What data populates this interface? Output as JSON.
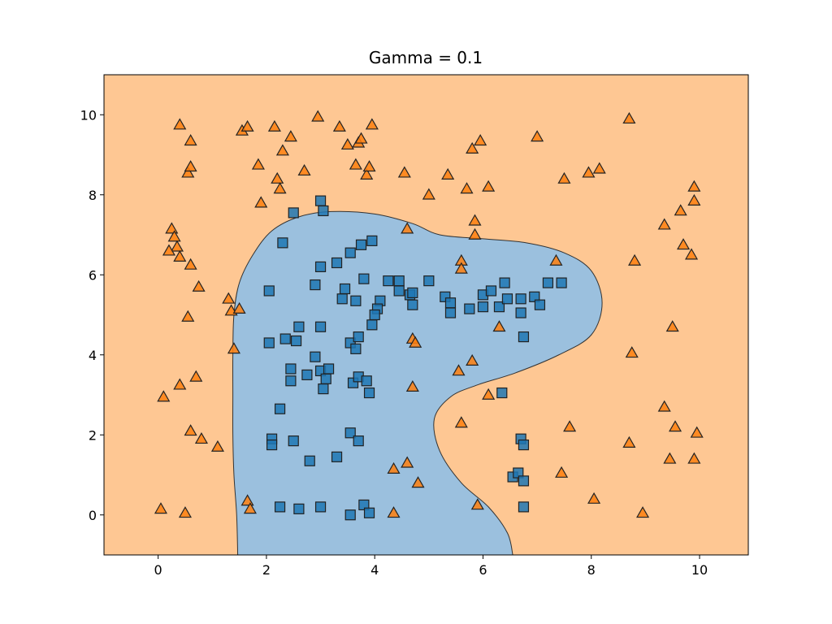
{
  "chart_data": {
    "type": "scatter",
    "title": "Gamma = 0.1",
    "xlabel": "",
    "ylabel": "",
    "xlim": [
      -1,
      10.9
    ],
    "ylim": [
      -1,
      11
    ],
    "xticks": [
      0,
      2,
      4,
      6,
      8,
      10
    ],
    "yticks": [
      0,
      2,
      4,
      6,
      8,
      10
    ],
    "grid": false,
    "colors": {
      "class0_fill": "#1f77b4",
      "class1_fill": "#ff7f0e",
      "region0": "#9bc0de",
      "region1": "#fec793",
      "marker_edge": "#222222"
    },
    "decision_boundary": [
      [
        1.47,
        -1
      ],
      [
        1.45,
        0
      ],
      [
        1.4,
        1
      ],
      [
        1.38,
        2
      ],
      [
        1.38,
        3
      ],
      [
        1.38,
        4
      ],
      [
        1.4,
        5
      ],
      [
        1.5,
        5.8
      ],
      [
        1.75,
        6.5
      ],
      [
        2.1,
        7.1
      ],
      [
        2.6,
        7.45
      ],
      [
        3.2,
        7.58
      ],
      [
        4.0,
        7.52
      ],
      [
        4.7,
        7.28
      ],
      [
        5.2,
        7.0
      ],
      [
        6.0,
        6.9
      ],
      [
        6.8,
        6.8
      ],
      [
        7.5,
        6.55
      ],
      [
        8.0,
        6.1
      ],
      [
        8.2,
        5.3
      ],
      [
        8.0,
        4.5
      ],
      [
        7.4,
        4.0
      ],
      [
        6.6,
        3.55
      ],
      [
        5.9,
        3.25
      ],
      [
        5.4,
        2.95
      ],
      [
        5.1,
        2.4
      ],
      [
        5.2,
        1.6
      ],
      [
        5.6,
        0.8
      ],
      [
        6.1,
        0.2
      ],
      [
        6.45,
        -0.45
      ],
      [
        6.55,
        -1
      ]
    ],
    "series": [
      {
        "marker": "square",
        "points": [
          [
            2.5,
            7.55
          ],
          [
            3.0,
            7.85
          ],
          [
            3.05,
            7.6
          ],
          [
            2.3,
            6.8
          ],
          [
            3.0,
            6.2
          ],
          [
            3.3,
            6.3
          ],
          [
            3.55,
            6.55
          ],
          [
            3.75,
            6.75
          ],
          [
            3.95,
            6.85
          ],
          [
            2.05,
            5.6
          ],
          [
            2.9,
            5.75
          ],
          [
            3.45,
            5.65
          ],
          [
            3.4,
            5.4
          ],
          [
            3.65,
            5.35
          ],
          [
            3.8,
            5.9
          ],
          [
            4.1,
            5.35
          ],
          [
            4.05,
            5.15
          ],
          [
            4.25,
            5.85
          ],
          [
            4.45,
            5.85
          ],
          [
            4.45,
            5.6
          ],
          [
            4.65,
            5.5
          ],
          [
            4.7,
            5.55
          ],
          [
            4.7,
            5.25
          ],
          [
            5.0,
            5.85
          ],
          [
            5.3,
            5.45
          ],
          [
            5.4,
            5.3
          ],
          [
            5.4,
            5.05
          ],
          [
            5.75,
            5.15
          ],
          [
            6.0,
            5.5
          ],
          [
            6.0,
            5.2
          ],
          [
            6.15,
            5.6
          ],
          [
            6.3,
            5.2
          ],
          [
            6.4,
            5.8
          ],
          [
            6.45,
            5.4
          ],
          [
            6.7,
            5.4
          ],
          [
            6.7,
            5.05
          ],
          [
            6.95,
            5.45
          ],
          [
            7.05,
            5.25
          ],
          [
            7.2,
            5.8
          ],
          [
            7.45,
            5.8
          ],
          [
            6.75,
            4.45
          ],
          [
            2.6,
            4.7
          ],
          [
            3.0,
            4.7
          ],
          [
            2.05,
            4.3
          ],
          [
            2.35,
            4.4
          ],
          [
            2.55,
            4.35
          ],
          [
            3.55,
            4.3
          ],
          [
            3.65,
            4.15
          ],
          [
            3.7,
            4.45
          ],
          [
            3.95,
            4.75
          ],
          [
            4.0,
            5.0
          ],
          [
            2.9,
            3.95
          ],
          [
            2.45,
            3.65
          ],
          [
            2.45,
            3.35
          ],
          [
            2.75,
            3.5
          ],
          [
            3.0,
            3.6
          ],
          [
            3.15,
            3.65
          ],
          [
            3.1,
            3.4
          ],
          [
            3.05,
            3.15
          ],
          [
            3.6,
            3.3
          ],
          [
            3.7,
            3.45
          ],
          [
            3.85,
            3.35
          ],
          [
            3.9,
            3.05
          ],
          [
            2.25,
            2.65
          ],
          [
            2.1,
            1.9
          ],
          [
            2.1,
            1.75
          ],
          [
            2.5,
            1.85
          ],
          [
            2.8,
            1.35
          ],
          [
            3.3,
            1.45
          ],
          [
            3.55,
            2.05
          ],
          [
            3.7,
            1.85
          ],
          [
            6.35,
            3.05
          ],
          [
            6.7,
            1.9
          ],
          [
            6.75,
            1.75
          ],
          [
            6.55,
            0.95
          ],
          [
            6.65,
            1.05
          ],
          [
            6.75,
            0.85
          ],
          [
            6.75,
            0.2
          ],
          [
            2.25,
            0.2
          ],
          [
            2.6,
            0.15
          ],
          [
            3.0,
            0.2
          ],
          [
            3.55,
            0.0
          ],
          [
            3.8,
            0.25
          ],
          [
            3.9,
            0.05
          ]
        ]
      },
      {
        "marker": "triangle",
        "points": [
          [
            0.4,
            9.75
          ],
          [
            0.6,
            9.35
          ],
          [
            0.55,
            8.55
          ],
          [
            0.6,
            8.7
          ],
          [
            1.55,
            9.6
          ],
          [
            1.65,
            9.7
          ],
          [
            2.15,
            9.7
          ],
          [
            2.3,
            9.1
          ],
          [
            2.45,
            9.45
          ],
          [
            2.95,
            9.95
          ],
          [
            3.35,
            9.7
          ],
          [
            3.5,
            9.25
          ],
          [
            3.7,
            9.3
          ],
          [
            3.75,
            9.4
          ],
          [
            3.95,
            9.75
          ],
          [
            1.85,
            8.75
          ],
          [
            2.2,
            8.4
          ],
          [
            2.25,
            8.15
          ],
          [
            2.7,
            8.6
          ],
          [
            3.65,
            8.75
          ],
          [
            3.85,
            8.5
          ],
          [
            3.9,
            8.7
          ],
          [
            1.9,
            7.8
          ],
          [
            4.55,
            8.55
          ],
          [
            5.0,
            8.0
          ],
          [
            5.35,
            8.5
          ],
          [
            5.7,
            8.15
          ],
          [
            5.8,
            9.15
          ],
          [
            5.95,
            9.35
          ],
          [
            6.1,
            8.2
          ],
          [
            7.0,
            9.45
          ],
          [
            7.5,
            8.4
          ],
          [
            7.95,
            8.55
          ],
          [
            8.15,
            8.65
          ],
          [
            8.7,
            9.9
          ],
          [
            0.25,
            7.15
          ],
          [
            0.3,
            6.95
          ],
          [
            0.35,
            6.7
          ],
          [
            0.2,
            6.6
          ],
          [
            0.4,
            6.45
          ],
          [
            0.6,
            6.25
          ],
          [
            0.75,
            5.7
          ],
          [
            0.55,
            4.95
          ],
          [
            1.3,
            5.4
          ],
          [
            1.35,
            5.1
          ],
          [
            1.5,
            5.15
          ],
          [
            1.4,
            4.15
          ],
          [
            4.6,
            7.15
          ],
          [
            5.85,
            7.35
          ],
          [
            5.85,
            7.0
          ],
          [
            5.6,
            6.35
          ],
          [
            5.6,
            6.15
          ],
          [
            7.35,
            6.35
          ],
          [
            8.8,
            6.35
          ],
          [
            9.35,
            7.25
          ],
          [
            9.65,
            7.6
          ],
          [
            9.9,
            8.2
          ],
          [
            9.9,
            7.85
          ],
          [
            9.7,
            6.75
          ],
          [
            9.85,
            6.5
          ],
          [
            9.5,
            4.7
          ],
          [
            8.75,
            4.05
          ],
          [
            6.3,
            4.7
          ],
          [
            5.8,
            3.85
          ],
          [
            5.55,
            3.6
          ],
          [
            4.7,
            4.4
          ],
          [
            4.75,
            4.3
          ],
          [
            4.7,
            3.2
          ],
          [
            6.1,
            3.0
          ],
          [
            9.35,
            2.7
          ],
          [
            9.55,
            2.2
          ],
          [
            9.95,
            2.05
          ],
          [
            9.45,
            1.4
          ],
          [
            9.9,
            1.4
          ],
          [
            8.7,
            1.8
          ],
          [
            5.6,
            2.3
          ],
          [
            7.6,
            2.2
          ],
          [
            7.45,
            1.05
          ],
          [
            8.05,
            0.4
          ],
          [
            8.95,
            0.05
          ],
          [
            0.1,
            2.95
          ],
          [
            0.4,
            3.25
          ],
          [
            0.7,
            3.45
          ],
          [
            0.6,
            2.1
          ],
          [
            0.8,
            1.9
          ],
          [
            1.1,
            1.7
          ],
          [
            0.05,
            0.15
          ],
          [
            0.5,
            0.05
          ],
          [
            1.65,
            0.35
          ],
          [
            1.7,
            0.15
          ],
          [
            4.35,
            1.15
          ],
          [
            4.6,
            1.3
          ],
          [
            4.8,
            0.8
          ],
          [
            4.35,
            0.05
          ],
          [
            5.9,
            0.25
          ]
        ]
      }
    ]
  }
}
